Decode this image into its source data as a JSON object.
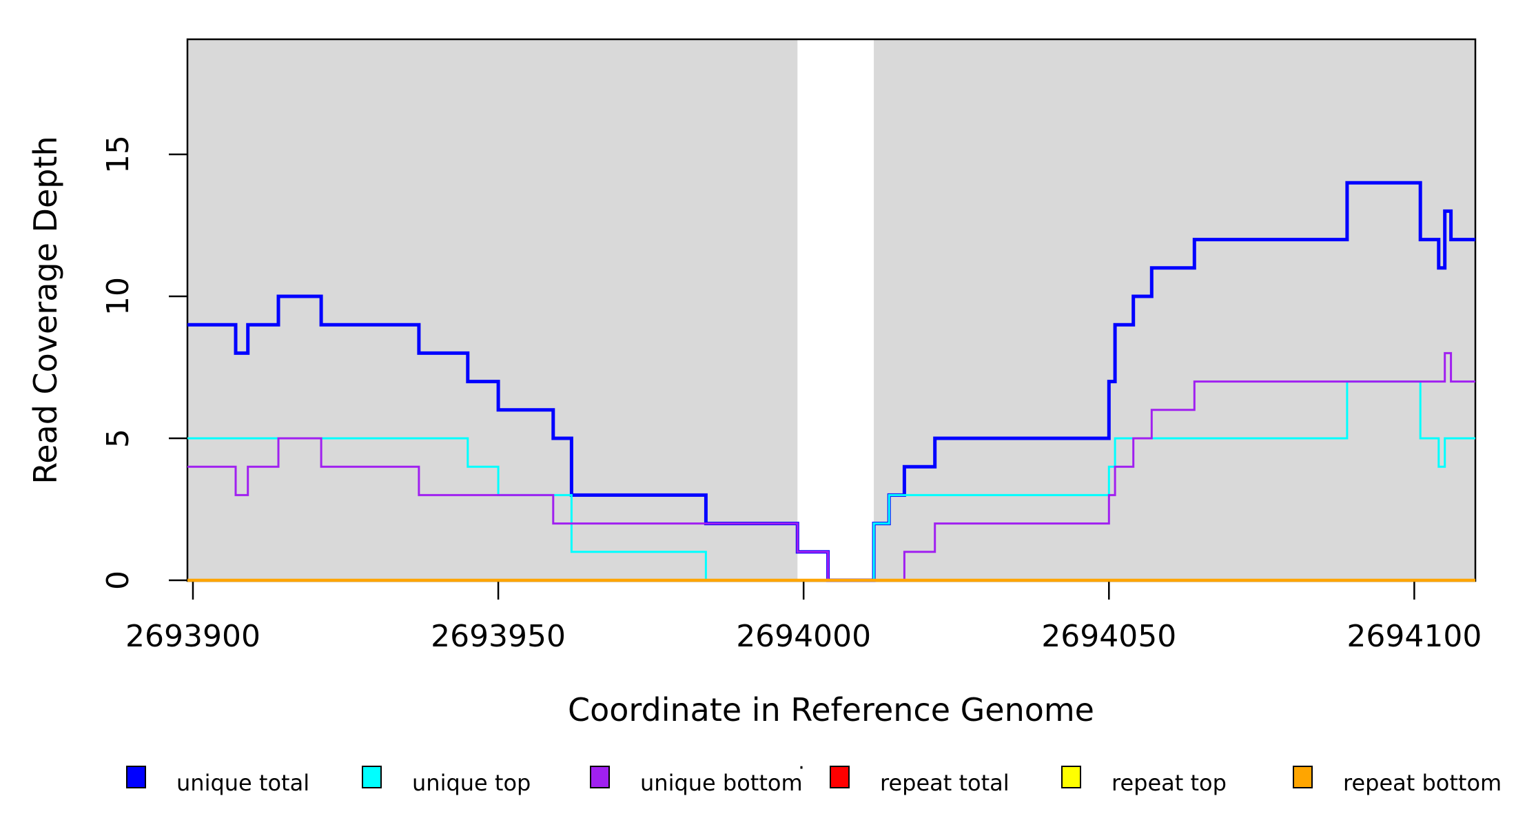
{
  "chart_data": {
    "type": "line",
    "subtype": "step-coverage-plot",
    "title": "",
    "xlabel": "Coordinate in Reference Genome",
    "ylabel": "Read Coverage Depth",
    "xlim": [
      2693899.1,
      2694110
    ],
    "ylim": [
      0,
      19.05
    ],
    "grid": "off",
    "background_bands": {
      "color": "#D9D9D9",
      "regions": [
        [
          2693899.1,
          2693999
        ],
        [
          2694011.5,
          2694110
        ]
      ]
    },
    "xticks": [
      {
        "value": 2693900,
        "label": "2693900"
      },
      {
        "value": 2693950,
        "label": "2693950"
      },
      {
        "value": 2694000,
        "label": "2694000"
      },
      {
        "value": 2694050,
        "label": "2694050"
      },
      {
        "value": 2694100,
        "label": "2694100"
      }
    ],
    "yticks": [
      {
        "value": 0,
        "label": "0"
      },
      {
        "value": 5,
        "label": "5"
      },
      {
        "value": 10,
        "label": "10"
      },
      {
        "value": 15,
        "label": "15"
      }
    ],
    "series": [
      {
        "name": "unique total",
        "color": "#0000FF",
        "line_width": 5,
        "steps": [
          [
            2693899.1,
            9
          ],
          [
            2693907,
            8
          ],
          [
            2693909,
            9
          ],
          [
            2693914,
            10
          ],
          [
            2693921,
            9
          ],
          [
            2693937,
            8
          ],
          [
            2693945,
            7
          ],
          [
            2693950,
            6
          ],
          [
            2693959,
            5
          ],
          [
            2693962,
            3
          ],
          [
            2693984,
            2
          ],
          [
            2693999,
            1
          ],
          [
            2694004,
            0
          ],
          [
            2694011.5,
            2
          ],
          [
            2694014,
            3
          ],
          [
            2694016.5,
            4
          ],
          [
            2694021.5,
            5
          ],
          [
            2694050,
            7
          ],
          [
            2694051,
            9
          ],
          [
            2694054,
            10
          ],
          [
            2694057,
            11
          ],
          [
            2694064,
            12
          ],
          [
            2694089,
            14
          ],
          [
            2694101,
            12
          ],
          [
            2694104,
            11
          ],
          [
            2694105,
            13
          ],
          [
            2694106,
            12
          ]
        ]
      },
      {
        "name": "unique top",
        "color": "#00FFFF",
        "line_width": 3,
        "steps": [
          [
            2693899.1,
            5
          ],
          [
            2693945,
            4
          ],
          [
            2693950,
            3
          ],
          [
            2693962,
            1
          ],
          [
            2693984,
            0
          ],
          [
            2694011.5,
            2
          ],
          [
            2694014,
            3
          ],
          [
            2694050,
            4
          ],
          [
            2694051,
            5
          ],
          [
            2694089,
            7
          ],
          [
            2694101,
            5
          ],
          [
            2694104,
            4
          ],
          [
            2694105,
            5
          ]
        ]
      },
      {
        "name": "unique bottom",
        "color": "#A020F0",
        "line_width": 3,
        "steps": [
          [
            2693899.1,
            4
          ],
          [
            2693907,
            3
          ],
          [
            2693909,
            4
          ],
          [
            2693914,
            5
          ],
          [
            2693921,
            4
          ],
          [
            2693937,
            3
          ],
          [
            2693959,
            2
          ],
          [
            2693999,
            1
          ],
          [
            2694004,
            0
          ],
          [
            2694016.5,
            1
          ],
          [
            2694021.5,
            2
          ],
          [
            2694050,
            3
          ],
          [
            2694051,
            4
          ],
          [
            2694054,
            5
          ],
          [
            2694057,
            6
          ],
          [
            2694064,
            7
          ],
          [
            2694105,
            8
          ],
          [
            2694106,
            7
          ]
        ]
      },
      {
        "name": "repeat total",
        "color": "#FF0000",
        "line_width": 3,
        "steps": [
          [
            2693899.1,
            0
          ]
        ]
      },
      {
        "name": "repeat top",
        "color": "#FFFF00",
        "line_width": 3,
        "steps": [
          [
            2693899.1,
            0
          ]
        ]
      },
      {
        "name": "repeat bottom",
        "color": "#FFA500",
        "line_width": 4.5,
        "steps": [
          [
            2693899.1,
            0
          ]
        ]
      }
    ],
    "legend": {
      "position": "bottom",
      "entries": [
        {
          "label": "unique total",
          "color": "#0000FF"
        },
        {
          "label": "unique top",
          "color": "#00FFFF"
        },
        {
          "label": "unique bottom",
          "color": "#A020F0"
        },
        {
          "label": "repeat total",
          "color": "#FF0000"
        },
        {
          "label": "repeat top",
          "color": "#FFFF00"
        },
        {
          "label": "repeat bottom",
          "color": "#FFA500"
        }
      ]
    },
    "stray_mark": "·"
  }
}
